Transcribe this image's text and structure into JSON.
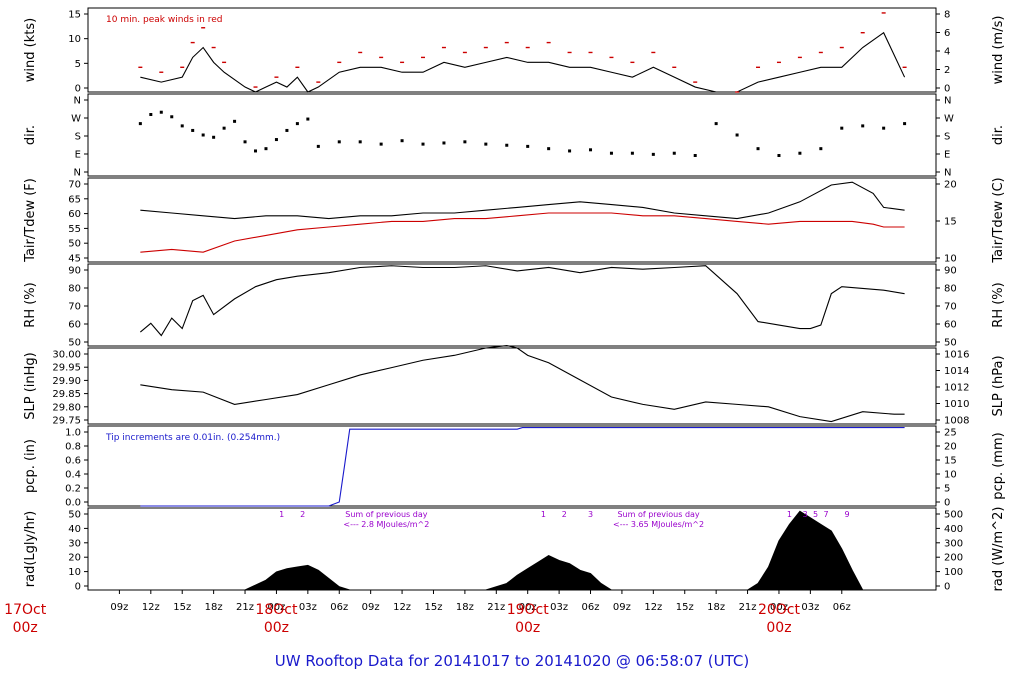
{
  "footer_title": "UW Rooftop Data for 20141017  to  20141020 @ 06:58:07  (UTC)",
  "colors": {
    "frame": "#000000",
    "accent_red": "#cc0000",
    "accent_blue": "#1a1acc",
    "accent_purple": "#9900cc",
    "background": "#ffffff"
  },
  "chart_data": {
    "x_axis": {
      "ticks": [
        "09z",
        "12z",
        "15z",
        "18z",
        "21z",
        "00z",
        "03z",
        "06z",
        "09z",
        "12z",
        "15z",
        "18z",
        "21z",
        "00z",
        "03z",
        "06z",
        "09z",
        "12z",
        "15z",
        "18z",
        "21z",
        "00z",
        "03z",
        "06z"
      ],
      "day_labels": [
        {
          "date": "17Oct",
          "hour": "00z",
          "tick_index": -3
        },
        {
          "date": "18Oct",
          "hour": "00z",
          "tick_index": 5
        },
        {
          "date": "19Oct",
          "hour": "00z",
          "tick_index": 13
        },
        {
          "date": "20Oct",
          "hour": "00z",
          "tick_index": 21
        }
      ]
    },
    "panels": [
      {
        "id": "wind",
        "type": "line",
        "left_label": "wind (kts)",
        "right_label": "wind (m/s)",
        "left_ticks": [
          "0",
          "5",
          "10",
          "15"
        ],
        "right_ticks": [
          "0",
          "2",
          "4",
          "6",
          "8"
        ],
        "ylim": [
          0,
          17
        ],
        "annotation": "10 min. peak winds in red",
        "series": [
          {
            "name": "wind speed",
            "color": "#000000",
            "x": [
              5,
              7,
              9,
              10,
              11,
              12,
              13,
              15,
              16,
              17,
              18,
              19,
              20,
              21,
              22,
              24,
              26,
              28,
              30,
              32,
              34,
              36,
              38,
              40,
              42,
              44,
              46,
              48,
              50,
              52,
              54,
              56,
              58,
              60,
              62,
              64,
              66,
              68,
              70,
              72,
              74,
              76,
              78
            ],
            "y": [
              3,
              2,
              3,
              7,
              9,
              6,
              4,
              1,
              0,
              1,
              2,
              1,
              3,
              0,
              1,
              4,
              5,
              5,
              4,
              4,
              6,
              5,
              6,
              7,
              6,
              6,
              5,
              5,
              4,
              3,
              5,
              3,
              1,
              0,
              0,
              2,
              3,
              4,
              5,
              5,
              9,
              12,
              3
            ]
          },
          {
            "name": "10 min. peak winds",
            "color": "#cc0000",
            "x": [
              5,
              7,
              9,
              10,
              11,
              12,
              13,
              16,
              18,
              20,
              22,
              24,
              26,
              28,
              30,
              32,
              34,
              36,
              38,
              40,
              42,
              44,
              46,
              48,
              50,
              52,
              54,
              56,
              58,
              62,
              64,
              66,
              68,
              70,
              72,
              74,
              76,
              78
            ],
            "y": [
              5,
              4,
              5,
              10,
              13,
              9,
              6,
              1,
              3,
              5,
              2,
              6,
              8,
              7,
              6,
              7,
              9,
              8,
              9,
              10,
              9,
              10,
              8,
              8,
              7,
              6,
              8,
              5,
              2,
              0,
              5,
              6,
              7,
              8,
              9,
              12,
              16,
              5
            ]
          }
        ]
      },
      {
        "id": "dir",
        "type": "scatter",
        "left_label": "dir.",
        "right_label": "dir.",
        "left_ticks": [
          "N",
          "E",
          "S",
          "W",
          "N"
        ],
        "right_ticks": [
          "N",
          "E",
          "S",
          "W",
          "N"
        ],
        "ylim": [
          0,
          360
        ],
        "series": [
          {
            "name": "direction",
            "color": "#000000",
            "x": [
              5,
              6,
              7,
              8,
              9,
              10,
              11,
              12,
              13,
              14,
              15,
              16,
              17,
              18,
              19,
              20,
              21,
              22,
              24,
              26,
              28,
              30,
              32,
              34,
              36,
              38,
              40,
              42,
              44,
              46,
              48,
              50,
              52,
              54,
              56,
              58,
              60,
              62,
              64,
              66,
              68,
              70,
              72,
              74,
              76,
              78
            ],
            "y": [
              230,
              270,
              280,
              260,
              220,
              200,
              180,
              170,
              210,
              240,
              150,
              110,
              120,
              160,
              200,
              230,
              250,
              130,
              150,
              150,
              140,
              155,
              140,
              145,
              150,
              140,
              135,
              130,
              120,
              110,
              115,
              100,
              100,
              95,
              100,
              90,
              230,
              180,
              120,
              90,
              100,
              120,
              210,
              220,
              210,
              230
            ]
          }
        ]
      },
      {
        "id": "temp",
        "type": "line",
        "left_label": "Tair/Tdew (F)",
        "right_label": "Tair/Tdew (C)",
        "left_ticks": [
          "45",
          "50",
          "55",
          "60",
          "65",
          "70"
        ],
        "right_ticks": [
          "10",
          "15",
          "20"
        ],
        "ylim": [
          42.5,
          72.5
        ],
        "series": [
          {
            "name": "Tair",
            "color": "#000000",
            "x": [
              5,
              8,
              11,
              14,
              17,
              20,
              23,
              26,
              29,
              32,
              35,
              38,
              41,
              44,
              47,
              50,
              53,
              56,
              59,
              62,
              65,
              68,
              71,
              73,
              75,
              76,
              78
            ],
            "y": [
              61,
              60,
              59,
              58,
              59,
              59,
              58,
              59,
              59,
              60,
              60,
              61,
              62,
              63,
              64,
              63,
              62,
              60,
              59,
              58,
              60,
              64,
              70,
              71,
              67,
              62,
              61
            ]
          },
          {
            "name": "Tdew",
            "color": "#cc0000",
            "x": [
              5,
              8,
              11,
              14,
              17,
              20,
              23,
              26,
              29,
              32,
              35,
              38,
              41,
              44,
              47,
              50,
              53,
              56,
              59,
              62,
              65,
              68,
              71,
              73,
              75,
              76,
              78
            ],
            "y": [
              46,
              47,
              46,
              50,
              52,
              54,
              55,
              56,
              57,
              57,
              58,
              58,
              59,
              60,
              60,
              60,
              59,
              59,
              58,
              57,
              56,
              57,
              57,
              57,
              56,
              55,
              55
            ]
          }
        ]
      },
      {
        "id": "rh",
        "type": "line",
        "left_label": "RH (%)",
        "right_label": "RH (%)",
        "left_ticks": [
          "50",
          "60",
          "70",
          "80",
          "90"
        ],
        "right_ticks": [
          "50",
          "60",
          "70",
          "80",
          "90"
        ],
        "ylim": [
          50,
          97
        ],
        "series": [
          {
            "name": "RH",
            "color": "#000000",
            "x": [
              5,
              6,
              7,
              8,
              9,
              10,
              11,
              12,
              14,
              16,
              18,
              20,
              23,
              26,
              29,
              32,
              35,
              38,
              41,
              44,
              47,
              50,
              53,
              56,
              59,
              62,
              64,
              66,
              68,
              69,
              70,
              71,
              72,
              74,
              76,
              78
            ],
            "y": [
              58,
              63,
              56,
              66,
              60,
              76,
              79,
              68,
              77,
              84,
              88,
              90,
              92,
              95,
              96,
              95,
              95,
              96,
              93,
              95,
              92,
              95,
              94,
              95,
              96,
              80,
              64,
              62,
              60,
              60,
              62,
              80,
              84,
              83,
              82,
              80
            ]
          }
        ]
      },
      {
        "id": "slp",
        "type": "line",
        "left_label": "SLP (inHg)",
        "right_label": "SLP (hPa)",
        "left_ticks": [
          "29.75",
          "29.80",
          "29.85",
          "29.90",
          "29.95",
          "30.00"
        ],
        "right_ticks": [
          "1008",
          "1010",
          "1012",
          "1014",
          "1016"
        ],
        "ylim": [
          29.72,
          30.03
        ],
        "series": [
          {
            "name": "SLP",
            "color": "#000000",
            "x": [
              5,
              8,
              11,
              14,
              17,
              20,
              23,
              26,
              29,
              32,
              35,
              38,
              40,
              41,
              42,
              44,
              47,
              50,
              53,
              56,
              59,
              62,
              65,
              68,
              71,
              74,
              77,
              78
            ],
            "y": [
              29.88,
              29.86,
              29.85,
              29.8,
              29.82,
              29.84,
              29.88,
              29.92,
              29.95,
              29.98,
              30.0,
              30.03,
              30.04,
              30.03,
              30.0,
              29.97,
              29.9,
              29.83,
              29.8,
              29.78,
              29.81,
              29.8,
              29.79,
              29.75,
              29.73,
              29.77,
              29.76,
              29.76
            ]
          }
        ]
      },
      {
        "id": "pcp",
        "type": "line",
        "left_label": "pcp. (in)",
        "right_label": "pcp. (mm)",
        "left_ticks": [
          "0.0",
          "0.2",
          "0.4",
          "0.6",
          "0.8",
          "1.0"
        ],
        "right_ticks": [
          "0",
          "5",
          "10",
          "15",
          "20",
          "25"
        ],
        "ylim": [
          0,
          1.0
        ],
        "annotation": "Tip increments are 0.01in. (0.254mm.)",
        "series": [
          {
            "name": "precip",
            "color": "#1a1acc",
            "x": [
              5,
              23,
              24,
              24.5,
              25,
              41,
              41.5,
              78
            ],
            "y": [
              0.0,
              0.0,
              0.05,
              0.5,
              0.96,
              0.96,
              0.98,
              0.98
            ]
          }
        ]
      },
      {
        "id": "rad",
        "type": "area",
        "left_label": "rad(Lgly/hr)",
        "right_label": "rad (W/m^2)",
        "left_ticks": [
          "0",
          "10",
          "20",
          "30",
          "40",
          "50"
        ],
        "right_ticks": [
          "0",
          "100",
          "200",
          "300",
          "400",
          "500"
        ],
        "ylim": [
          0,
          50
        ],
        "annotations": [
          {
            "text": "Sum of previous day",
            "x": 28.5
          },
          {
            "text": "<--- 2.8 MJoules/m^2",
            "x": 28.5
          },
          {
            "text": "Sum of previous day",
            "x": 54.5
          },
          {
            "text": "<--- 3.65 MJoules/m^2",
            "x": 54.5
          }
        ],
        "markers": [
          {
            "label": "1",
            "x": 18.5
          },
          {
            "label": "2",
            "x": 20.5
          },
          {
            "label": "1",
            "x": 43.5
          },
          {
            "label": "2",
            "x": 45.5
          },
          {
            "label": "3",
            "x": 48.0
          },
          {
            "label": "1",
            "x": 67.0
          },
          {
            "label": "3",
            "x": 68.5
          },
          {
            "label": "5",
            "x": 69.5
          },
          {
            "label": "7",
            "x": 70.5
          },
          {
            "label": "9",
            "x": 72.5
          }
        ],
        "series": [
          {
            "name": "radiation",
            "color": "#000000",
            "x": [
              15,
              17,
              18,
              19,
              20,
              21,
              22,
              23,
              24,
              25,
              38,
              40,
              41,
              42,
              43,
              44,
              45,
              46,
              47,
              48,
              49,
              50,
              63,
              64,
              65,
              66,
              67,
              68,
              69,
              70,
              71,
              72,
              73,
              74
            ],
            "y": [
              0,
              6,
              11,
              13,
              14,
              15,
              12,
              7,
              2,
              0,
              0,
              4,
              9,
              13,
              17,
              21,
              18,
              16,
              12,
              10,
              4,
              0,
              0,
              4,
              14,
              30,
              40,
              48,
              44,
              40,
              36,
              25,
              12,
              0
            ]
          }
        ]
      }
    ]
  }
}
